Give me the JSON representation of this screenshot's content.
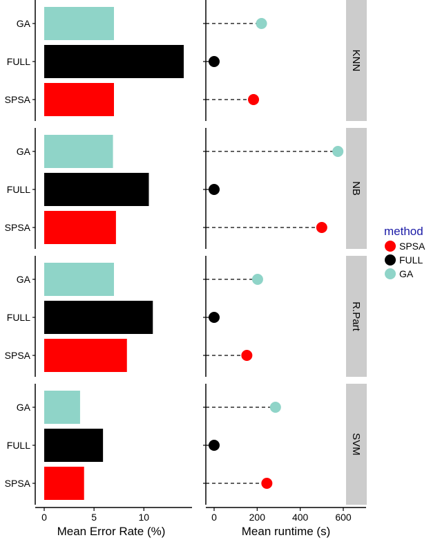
{
  "chart_data": {
    "type": "bar",
    "panels": [
      "KNN",
      "NB",
      "R.Part",
      "SVM"
    ],
    "methods": [
      "GA",
      "FULL",
      "SPSA"
    ],
    "colors": {
      "SPSA": "#ff0000",
      "FULL": "#000000",
      "GA": "#8fd4c8"
    },
    "error_rate": {
      "xlabel": "Mean Error Rate (%)",
      "xlim": [
        0,
        14
      ],
      "ticks": [
        0,
        5,
        10
      ],
      "values": {
        "KNN": {
          "GA": 7.0,
          "FULL": 14.0,
          "SPSA": 7.0
        },
        "NB": {
          "GA": 6.9,
          "FULL": 10.5,
          "SPSA": 7.2
        },
        "R.Part": {
          "GA": 7.0,
          "FULL": 10.9,
          "SPSA": 8.3
        },
        "SVM": {
          "GA": 3.6,
          "FULL": 5.9,
          "SPSA": 4.0
        }
      }
    },
    "runtime": {
      "xlabel": "Mean runtime (s)",
      "xlim": [
        -40,
        690
      ],
      "ticks": [
        0,
        200,
        400,
        600
      ],
      "values": {
        "KNN": {
          "GA": 220,
          "FULL": 0,
          "SPSA": 183
        },
        "NB": {
          "GA": 575,
          "FULL": 0,
          "SPSA": 500
        },
        "R.Part": {
          "GA": 202,
          "FULL": 0,
          "SPSA": 152
        },
        "SVM": {
          "GA": 285,
          "FULL": 0,
          "SPSA": 245
        }
      }
    },
    "legend": {
      "title": "method",
      "entries": [
        "SPSA",
        "FULL",
        "GA"
      ],
      "position": "right"
    }
  }
}
